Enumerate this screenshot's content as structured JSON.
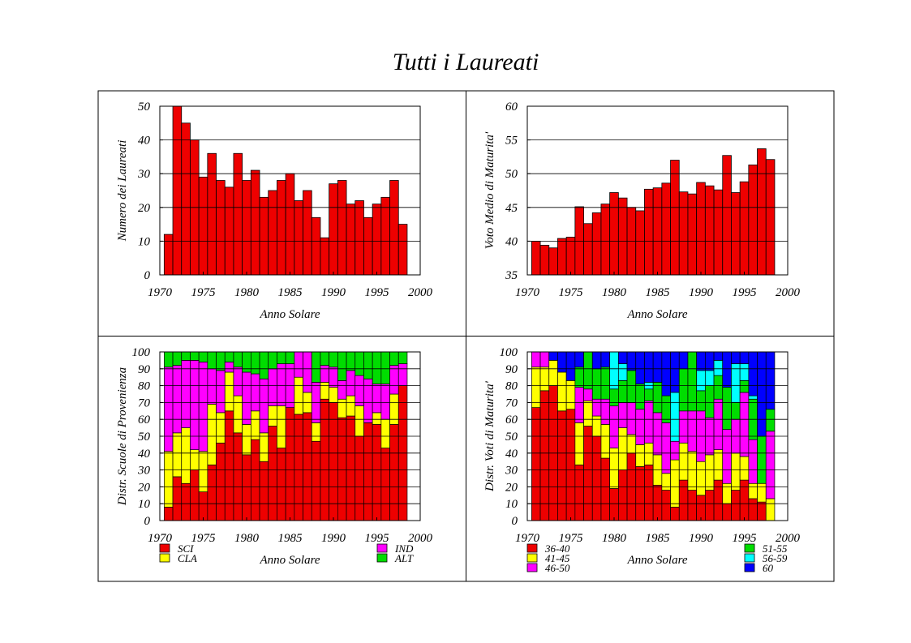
{
  "page": {
    "title": "Tutti i Laureati"
  },
  "colors": {
    "red": "#ee0000",
    "yellow": "#ffff00",
    "magenta": "#ff00ff",
    "green": "#00dd00",
    "cyan": "#00ffff",
    "blue": "#0000ff"
  },
  "chart_data": [
    {
      "id": "laureati",
      "type": "bar",
      "xlabel": "Anno Solare",
      "ylabel": "Numero dei Laureati",
      "xlim": [
        1970,
        2000
      ],
      "ylim": [
        0,
        50
      ],
      "xticks": [
        1970,
        1975,
        1980,
        1985,
        1990,
        1995,
        2000
      ],
      "yticks": [
        0,
        10,
        20,
        30,
        40,
        50
      ],
      "grid": true,
      "x": [
        1971,
        1972,
        1973,
        1974,
        1975,
        1976,
        1977,
        1978,
        1979,
        1980,
        1981,
        1982,
        1983,
        1984,
        1985,
        1986,
        1987,
        1988,
        1989,
        1990,
        1991,
        1992,
        1993,
        1994,
        1995,
        1996,
        1997,
        1998
      ],
      "values": [
        12,
        50,
        45,
        40,
        29,
        36,
        28,
        26,
        36,
        28,
        31,
        23,
        25,
        28,
        30,
        22,
        25,
        17,
        11,
        27,
        28,
        21,
        22,
        17,
        21,
        23,
        28,
        15
      ],
      "color": "#ee0000"
    },
    {
      "id": "voto",
      "type": "bar",
      "xlabel": "Anno Solare",
      "ylabel": "Voto Medio di Maturita'",
      "xlim": [
        1970,
        2000
      ],
      "ylim": [
        35,
        60
      ],
      "xticks": [
        1970,
        1975,
        1980,
        1985,
        1990,
        1995,
        2000
      ],
      "yticks": [
        35,
        40,
        45,
        50,
        55,
        60
      ],
      "grid": true,
      "x": [
        1971,
        1972,
        1973,
        1974,
        1975,
        1976,
        1977,
        1978,
        1979,
        1980,
        1981,
        1982,
        1983,
        1984,
        1985,
        1986,
        1987,
        1988,
        1989,
        1990,
        1991,
        1992,
        1993,
        1994,
        1995,
        1996,
        1997,
        1998
      ],
      "values": [
        40,
        39.4,
        39,
        40.4,
        40.6,
        45.1,
        42.6,
        44.2,
        45.5,
        47.2,
        46.4,
        45,
        44.5,
        47.7,
        47.9,
        48.6,
        52,
        47.3,
        47,
        48.7,
        48.2,
        47.6,
        52.7,
        47.2,
        48.8,
        51.3,
        53.7,
        52.1
      ],
      "color": "#ee0000"
    },
    {
      "id": "scuole",
      "type": "bar",
      "stacked": true,
      "xlabel": "Anno Solare",
      "ylabel": "Distr. Scuole di Provenienza",
      "xlim": [
        1970,
        2000
      ],
      "ylim": [
        0,
        100
      ],
      "xticks": [
        1970,
        1975,
        1980,
        1985,
        1990,
        1995,
        2000
      ],
      "yticks": [
        0,
        10,
        20,
        30,
        40,
        50,
        60,
        70,
        80,
        90,
        100
      ],
      "grid": true,
      "legend_position": "below",
      "x": [
        1971,
        1972,
        1973,
        1974,
        1975,
        1976,
        1977,
        1978,
        1979,
        1980,
        1981,
        1982,
        1983,
        1984,
        1985,
        1986,
        1987,
        1988,
        1989,
        1990,
        1991,
        1992,
        1993,
        1994,
        1995,
        1996,
        1997,
        1998
      ],
      "series": [
        {
          "name": "SCI",
          "color": "#ee0000",
          "values": [
            8,
            26,
            22,
            30,
            17,
            33,
            46,
            65,
            52,
            39,
            48,
            35,
            56,
            43,
            67,
            63,
            64,
            47,
            72,
            70,
            61,
            62,
            50,
            58,
            57,
            43,
            57,
            80
          ]
        },
        {
          "name": "CLA",
          "color": "#ffff00",
          "values": [
            33,
            26,
            33,
            12,
            24,
            36,
            18,
            23,
            22,
            18,
            17,
            17,
            12,
            25,
            0,
            22,
            12,
            11,
            10,
            9,
            11,
            12,
            18,
            0,
            7,
            17,
            18,
            0
          ]
        },
        {
          "name": "IND",
          "color": "#ff00ff",
          "values": [
            50,
            40,
            40,
            53,
            53,
            21,
            25,
            6,
            17,
            31,
            22,
            32,
            22,
            25,
            26,
            15,
            24,
            24,
            10,
            12,
            11,
            15,
            18,
            26,
            17,
            21,
            17,
            13
          ]
        },
        {
          "name": "ALT",
          "color": "#00dd00",
          "values": [
            9,
            8,
            5,
            5,
            6,
            10,
            11,
            6,
            9,
            12,
            13,
            16,
            10,
            7,
            7,
            0,
            0,
            18,
            8,
            9,
            17,
            11,
            14,
            16,
            19,
            19,
            8,
            7
          ]
        }
      ]
    },
    {
      "id": "voti",
      "type": "bar",
      "stacked": true,
      "xlabel": "Anno Solare",
      "ylabel": "Distr. Voti di Maturita'",
      "xlim": [
        1970,
        2000
      ],
      "ylim": [
        0,
        100
      ],
      "xticks": [
        1970,
        1975,
        1980,
        1985,
        1990,
        1995,
        2000
      ],
      "yticks": [
        0,
        10,
        20,
        30,
        40,
        50,
        60,
        70,
        80,
        90,
        100
      ],
      "grid": true,
      "legend_position": "below",
      "x": [
        1971,
        1972,
        1973,
        1974,
        1975,
        1976,
        1977,
        1978,
        1979,
        1980,
        1981,
        1982,
        1983,
        1984,
        1985,
        1986,
        1987,
        1988,
        1989,
        1990,
        1991,
        1992,
        1993,
        1994,
        1995,
        1996,
        1997,
        1998
      ],
      "series": [
        {
          "name": "36-40",
          "color": "#ee0000",
          "values": [
            67,
            77,
            80,
            65,
            66,
            33,
            56,
            50,
            37,
            19,
            30,
            40,
            32,
            33,
            21,
            18,
            8,
            24,
            18,
            15,
            18,
            24,
            10,
            18,
            24,
            13,
            11,
            0
          ]
        },
        {
          "name": "41-45",
          "color": "#ffff00",
          "values": [
            24,
            14,
            15,
            23,
            17,
            25,
            15,
            12,
            20,
            24,
            25,
            11,
            13,
            13,
            18,
            10,
            28,
            22,
            23,
            20,
            21,
            18,
            12,
            22,
            14,
            9,
            11,
            13
          ]
        },
        {
          "name": "46-50",
          "color": "#ff00ff",
          "values": [
            9,
            9,
            0,
            0,
            0,
            21,
            7,
            10,
            15,
            25,
            15,
            19,
            21,
            25,
            25,
            30,
            11,
            19,
            24,
            30,
            22,
            30,
            32,
            20,
            38,
            26,
            0,
            40
          ]
        },
        {
          "name": "51-55",
          "color": "#00dd00",
          "values": [
            0,
            0,
            0,
            0,
            0,
            12,
            22,
            18,
            19,
            10,
            13,
            19,
            15,
            7,
            18,
            16,
            0,
            25,
            35,
            12,
            19,
            14,
            25,
            10,
            7,
            24,
            28,
            13
          ]
        },
        {
          "name": "56-59",
          "color": "#00ffff",
          "values": [
            0,
            0,
            0,
            0,
            0,
            0,
            0,
            0,
            0,
            22,
            10,
            0,
            0,
            4,
            0,
            0,
            29,
            0,
            0,
            12,
            9,
            9,
            0,
            23,
            10,
            2,
            0,
            0
          ]
        },
        {
          "name": "60",
          "color": "#0000ff",
          "values": [
            0,
            0,
            5,
            12,
            17,
            9,
            0,
            10,
            9,
            0,
            7,
            11,
            19,
            18,
            18,
            26,
            24,
            10,
            0,
            11,
            11,
            5,
            21,
            7,
            7,
            26,
            50,
            34
          ]
        }
      ]
    }
  ]
}
